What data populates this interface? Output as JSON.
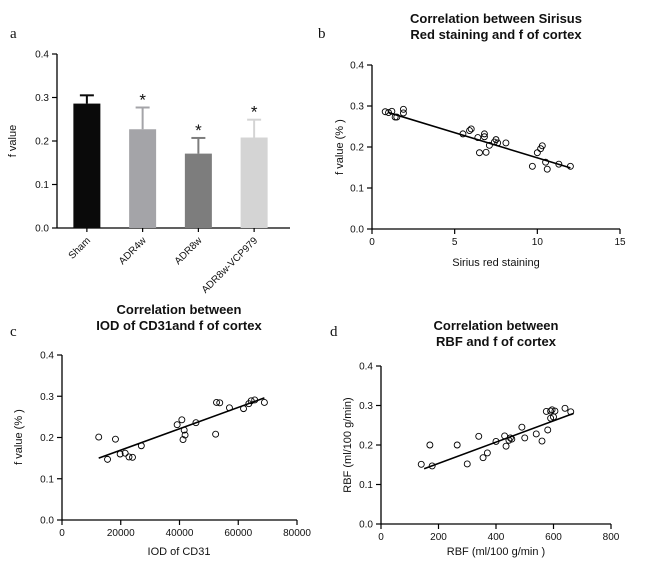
{
  "chart_data": [
    {
      "panel": "a",
      "type": "bar",
      "title": "",
      "ylabel": "f value",
      "categories": [
        "Sham",
        "ADR4w",
        "ADR8w",
        "ADR8w-VCP979"
      ],
      "values": [
        0.286,
        0.227,
        0.171,
        0.208
      ],
      "errors": [
        0.019,
        0.05,
        0.036,
        0.041
      ],
      "significance": [
        "",
        "*",
        "*",
        "*"
      ],
      "colors": [
        "#0a0a0a",
        "#a4a4a8",
        "#7d7d7d",
        "#d4d4d4"
      ],
      "ylim": [
        0,
        0.4
      ],
      "yticks": [
        "0.0",
        "0.1",
        "0.2",
        "0.3",
        "0.4"
      ]
    },
    {
      "panel": "b",
      "type": "scatter",
      "title": [
        "Correlation between Sirisus",
        "Red staining and f of cortex"
      ],
      "xlabel": "Sirius red staining",
      "ylabel": "f value (% )",
      "xlim": [
        0,
        15
      ],
      "ylim": [
        0,
        0.4
      ],
      "xticks": [
        "0",
        "5",
        "10",
        "15"
      ],
      "yticks": [
        "0.0",
        "0.1",
        "0.2",
        "0.3",
        "0.4"
      ],
      "x": [
        0.8,
        1.0,
        1.2,
        1.4,
        1.5,
        1.9,
        1.9,
        5.5,
        5.9,
        6.0,
        6.4,
        6.5,
        6.8,
        6.8,
        6.9,
        7.1,
        7.4,
        7.5,
        7.6,
        8.1,
        9.7,
        10.0,
        10.2,
        10.3,
        10.5,
        10.6,
        11.3,
        12.0
      ],
      "y": [
        0.286,
        0.284,
        0.287,
        0.273,
        0.273,
        0.292,
        0.283,
        0.232,
        0.24,
        0.244,
        0.223,
        0.186,
        0.225,
        0.232,
        0.187,
        0.204,
        0.212,
        0.218,
        0.21,
        0.21,
        0.153,
        0.186,
        0.196,
        0.203,
        0.163,
        0.146,
        0.158,
        0.153
      ],
      "fit": {
        "x": [
          1.0,
          12.0
        ],
        "y": [
          0.284,
          0.149
        ]
      }
    },
    {
      "panel": "c",
      "type": "scatter",
      "title": [
        "Correlation between",
        "IOD of CD31and f of cortex"
      ],
      "xlabel": "IOD of CD31",
      "ylabel": "f value (% )",
      "xlim": [
        0,
        80000
      ],
      "ylim": [
        0,
        0.4
      ],
      "xticks": [
        "0",
        "20000",
        "40000",
        "60000",
        "80000"
      ],
      "yticks": [
        "0.0",
        "0.1",
        "0.2",
        "0.3",
        "0.4"
      ],
      "x": [
        12500,
        15500,
        18200,
        19800,
        21500,
        22800,
        24000,
        27000,
        39200,
        40800,
        41200,
        41600,
        41900,
        45600,
        52300,
        52600,
        53700,
        57000,
        61800,
        63600,
        64400,
        65600,
        68900
      ],
      "y": [
        0.201,
        0.147,
        0.196,
        0.16,
        0.162,
        0.153,
        0.152,
        0.18,
        0.231,
        0.243,
        0.195,
        0.218,
        0.206,
        0.236,
        0.208,
        0.285,
        0.284,
        0.272,
        0.27,
        0.282,
        0.289,
        0.291,
        0.285
      ],
      "fit": {
        "x": [
          12500,
          68900
        ],
        "y": [
          0.15,
          0.296
        ]
      }
    },
    {
      "panel": "d",
      "type": "scatter",
      "title": [
        "Correlation between",
        "RBF and f of cortex"
      ],
      "xlabel": "RBF (ml/100 g/min )",
      "ylabel": "RBF (ml/100 g/min)",
      "xlim": [
        0,
        800
      ],
      "ylim": [
        0,
        0.4
      ],
      "xticks": [
        "0",
        "200",
        "400",
        "600",
        "800"
      ],
      "yticks": [
        "0.0",
        "0.1",
        "0.2",
        "0.3",
        "0.4"
      ],
      "x": [
        140,
        170,
        178,
        265,
        300,
        340,
        355,
        370,
        400,
        430,
        435,
        445,
        450,
        455,
        490,
        500,
        540,
        560,
        575,
        580,
        590,
        590,
        595,
        600,
        605,
        640,
        660
      ],
      "y": [
        0.151,
        0.2,
        0.147,
        0.2,
        0.152,
        0.222,
        0.168,
        0.18,
        0.209,
        0.223,
        0.197,
        0.212,
        0.218,
        0.215,
        0.245,
        0.218,
        0.228,
        0.21,
        0.285,
        0.238,
        0.268,
        0.286,
        0.289,
        0.271,
        0.286,
        0.293,
        0.284
      ],
      "fit": {
        "x": [
          150,
          670
        ],
        "y": [
          0.14,
          0.28
        ]
      }
    }
  ]
}
